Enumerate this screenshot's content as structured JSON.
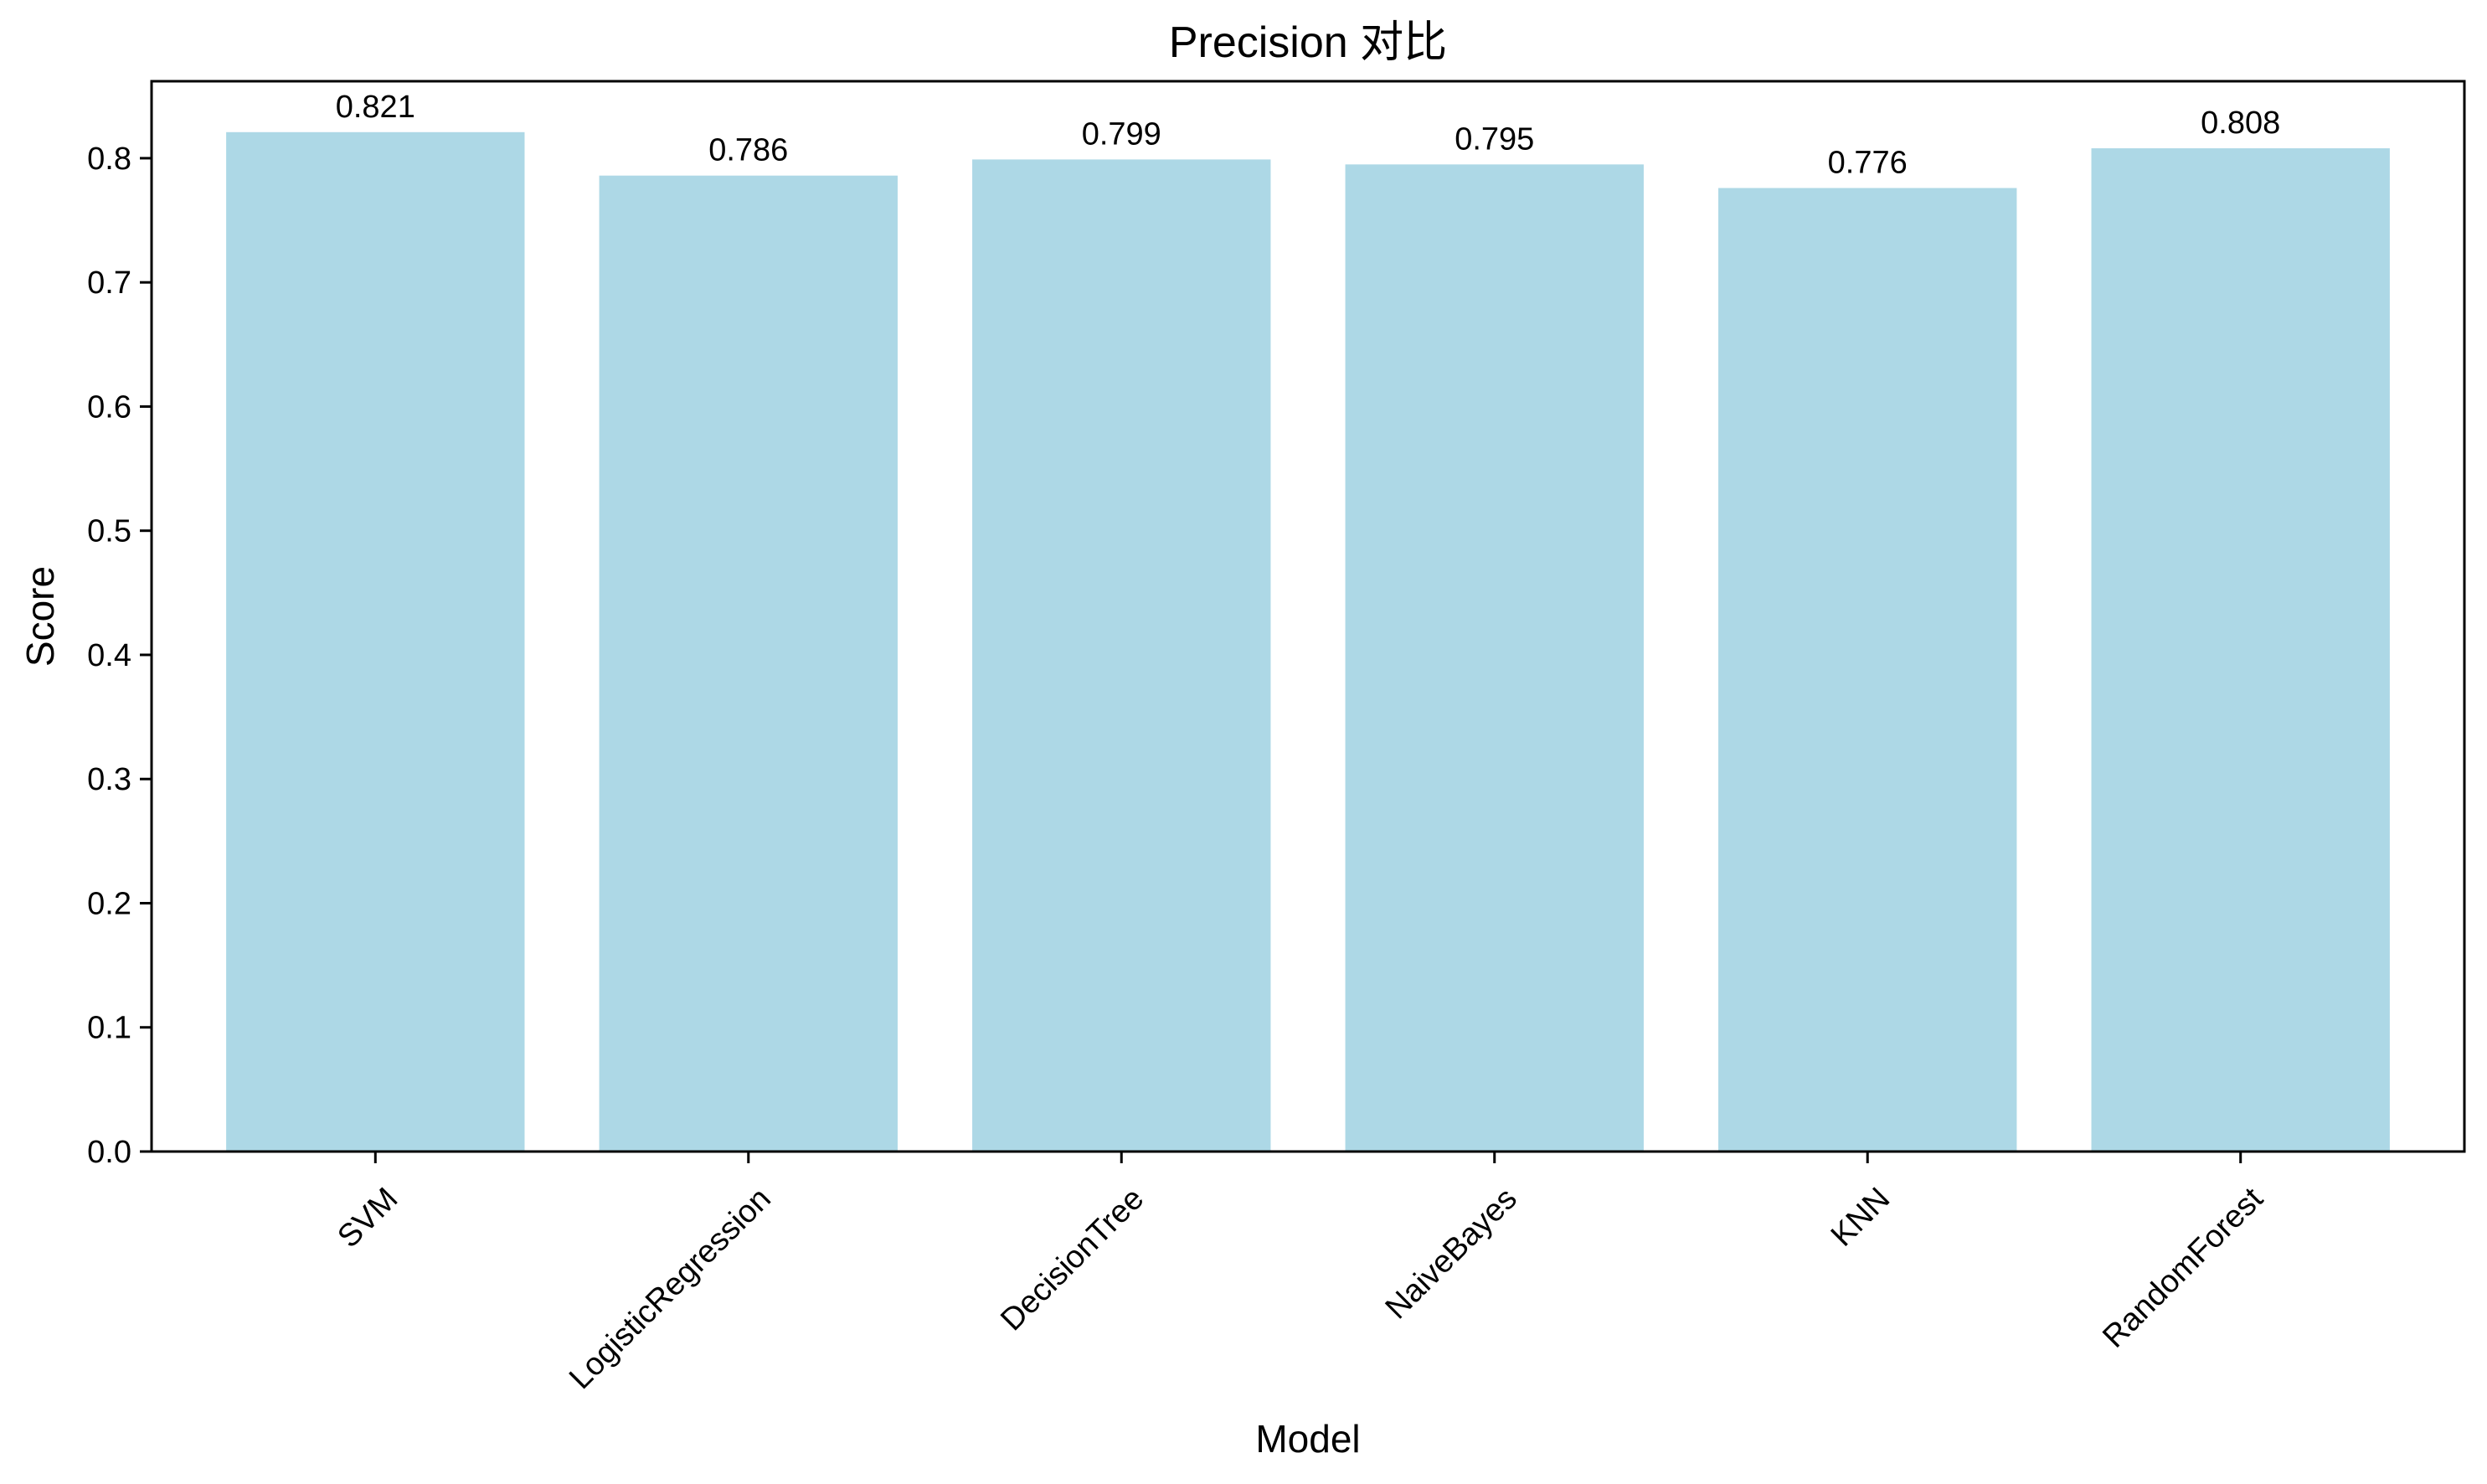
{
  "chart_data": {
    "type": "bar",
    "title": "Precision 对比",
    "xlabel": "Model",
    "ylabel": "Score",
    "categories": [
      "SVM",
      "LogisticRegression",
      "DecisionTree",
      "NaiveBayes",
      "KNN",
      "RandomForest"
    ],
    "values": [
      0.821,
      0.786,
      0.799,
      0.795,
      0.776,
      0.808
    ],
    "data_labels": [
      "0.821",
      "0.786",
      "0.799",
      "0.795",
      "0.776",
      "0.808"
    ],
    "ylim": [
      0,
      0.862
    ],
    "yticks": [
      0.0,
      0.1,
      0.2,
      0.3,
      0.4,
      0.5,
      0.6,
      0.7,
      0.8
    ],
    "ytick_labels": [
      "0.0",
      "0.1",
      "0.2",
      "0.3",
      "0.4",
      "0.5",
      "0.6",
      "0.7",
      "0.8"
    ],
    "bar_color": "#add8e6",
    "grid": false,
    "legend": "none",
    "xtick_rotation_deg": 45
  }
}
